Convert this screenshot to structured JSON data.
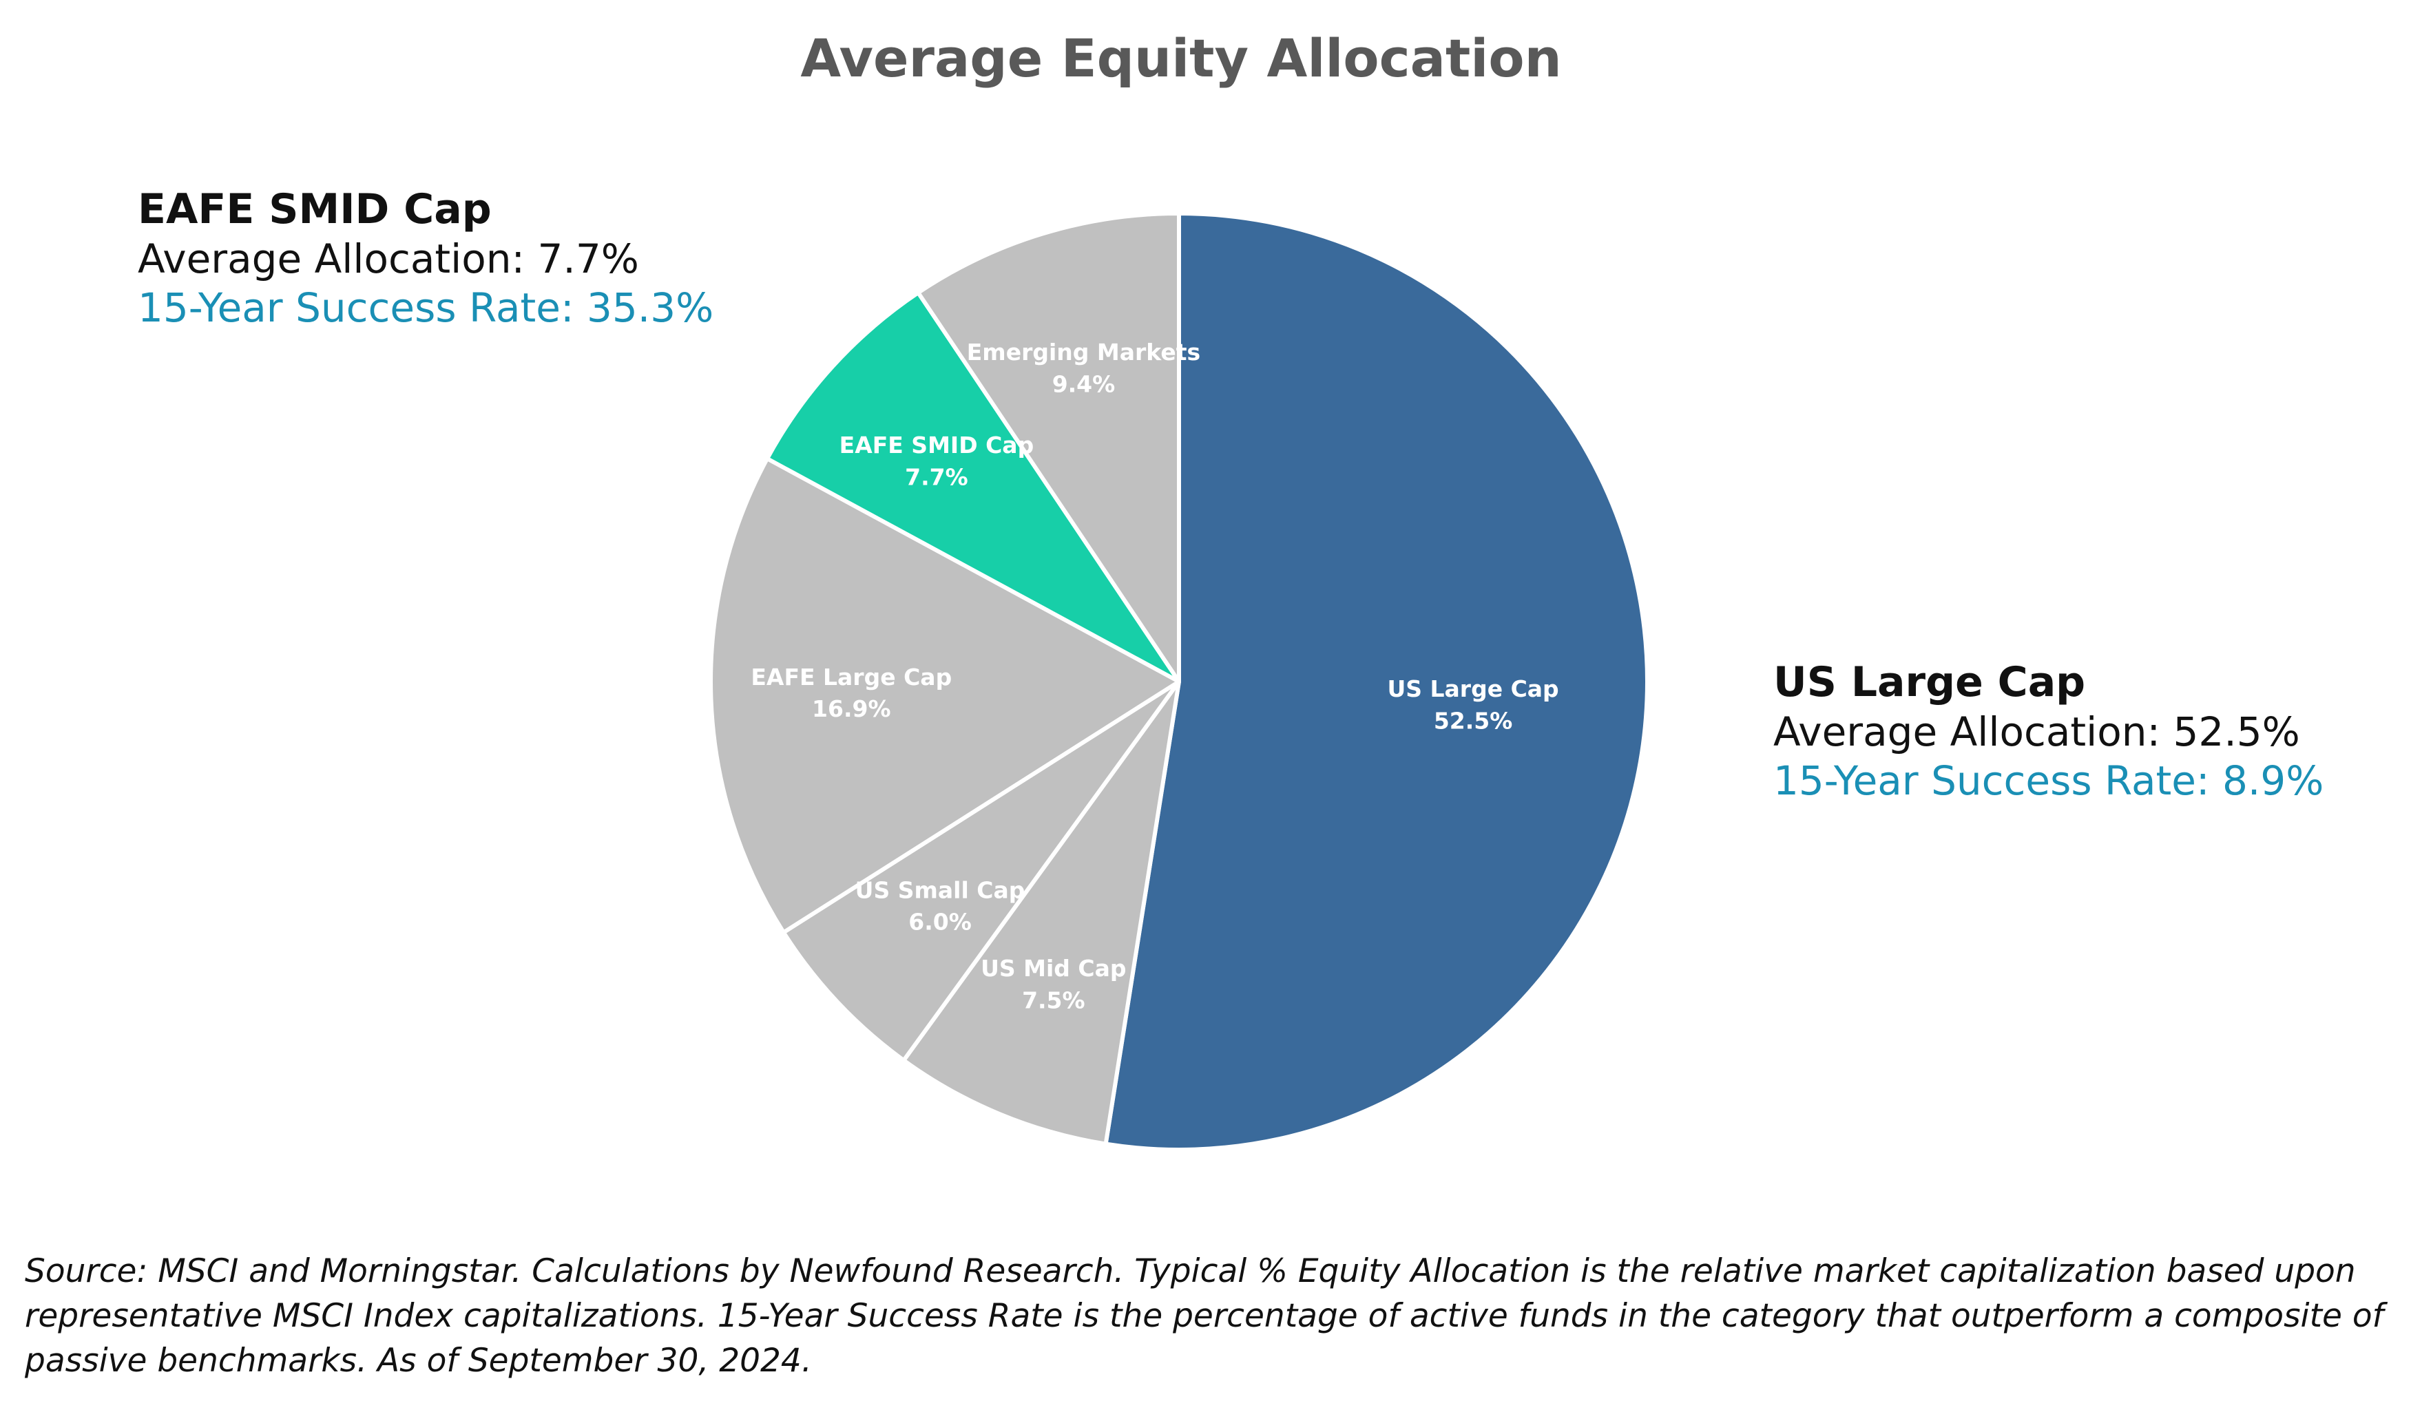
{
  "chart_data": {
    "type": "pie",
    "title": "Average Equity Allocation",
    "slices": [
      {
        "name": "US Large Cap",
        "value": 52.5,
        "label": "52.5%",
        "color": "#3a6a9b"
      },
      {
        "name": "US Mid Cap",
        "value": 7.5,
        "label": "7.5%",
        "color": "#c0c0c0"
      },
      {
        "name": "US Small Cap",
        "value": 6.0,
        "label": "6.0%",
        "color": "#c0c0c0"
      },
      {
        "name": "EAFE Large Cap",
        "value": 16.9,
        "label": "16.9%",
        "color": "#c0c0c0"
      },
      {
        "name": "EAFE SMID Cap",
        "value": 7.7,
        "label": "7.7%",
        "color": "#17cfa8"
      },
      {
        "name": "Emerging Markets",
        "value": 9.4,
        "label": "9.4%",
        "color": "#c0c0c0"
      }
    ],
    "legend": "none"
  },
  "callouts": {
    "left": {
      "name": "EAFE SMID Cap",
      "allocation": "Average Allocation: 7.7%",
      "success_rate": "15-Year Success Rate: 35.3%"
    },
    "right": {
      "name": "US Large Cap",
      "allocation": "Average Allocation: 52.5%",
      "success_rate": "15-Year Success Rate: 8.9%"
    }
  },
  "footnote": "Source: MSCI and Morningstar.  Calculations by Newfound Research.  Typical % Equity Allocation is the relative market capitalization based upon representative MSCI Index capitalizations.  15-Year Success Rate is the percentage of active funds in the category that outperform a composite of passive benchmarks.  As of September 30, 2024.",
  "colors": {
    "title": "#595959",
    "success_rate_text": "#1a8fb5",
    "slice_border": "#ffffff"
  }
}
